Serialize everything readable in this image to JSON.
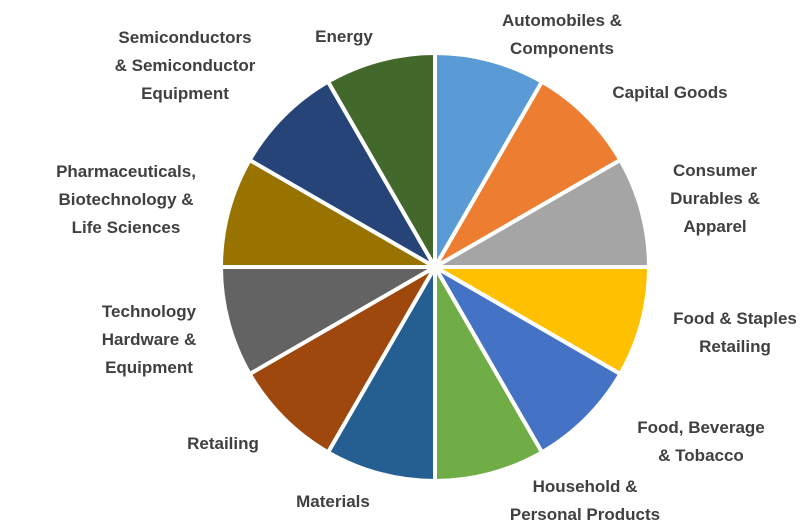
{
  "chart_data": {
    "type": "pie",
    "title": "",
    "slices": [
      {
        "label": [
          "Automobiles &",
          "Components"
        ],
        "value": 1,
        "color": "#5b9bd5"
      },
      {
        "label": [
          "Capital Goods"
        ],
        "value": 1,
        "color": "#ed7d31"
      },
      {
        "label": [
          "Consumer",
          "Durables &",
          "Apparel"
        ],
        "value": 1,
        "color": "#a5a5a5"
      },
      {
        "label": [
          "Food & Staples",
          "Retailing"
        ],
        "value": 1,
        "color": "#ffc000"
      },
      {
        "label": [
          "Food, Beverage",
          "& Tobacco"
        ],
        "value": 1,
        "color": "#4472c4"
      },
      {
        "label": [
          "Household &",
          "Personal Products"
        ],
        "value": 1,
        "color": "#70ad47"
      },
      {
        "label": [
          "Materials"
        ],
        "value": 1,
        "color": "#255e91"
      },
      {
        "label": [
          "Retailing"
        ],
        "value": 1,
        "color": "#9e480e"
      },
      {
        "label": [
          "Technology",
          "Hardware &",
          "Equipment"
        ],
        "value": 1,
        "color": "#636363"
      },
      {
        "label": [
          "Pharmaceuticals,",
          "Biotechnology &",
          "Life Sciences"
        ],
        "value": 1,
        "color": "#997300"
      },
      {
        "label": [
          "Semiconductors",
          "& Semiconductor",
          "Equipment"
        ],
        "value": 1,
        "color": "#264478"
      },
      {
        "label": [
          "Energy"
        ],
        "value": 1,
        "color": "#43682b"
      }
    ]
  }
}
